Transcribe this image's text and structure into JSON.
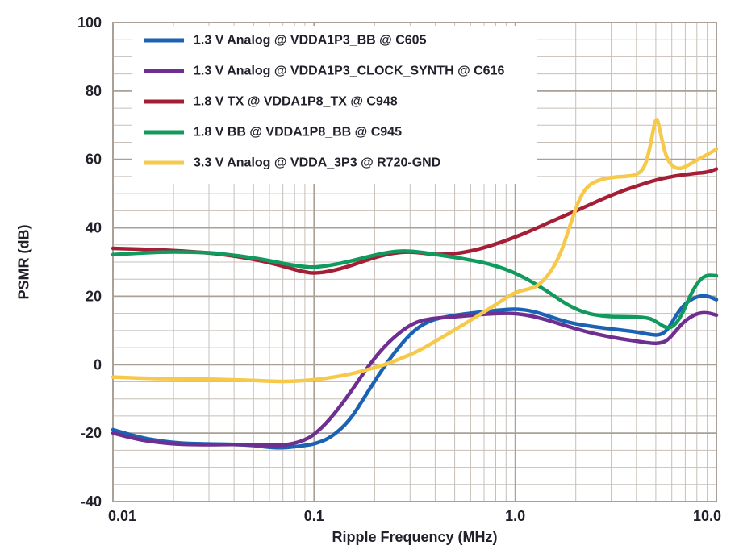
{
  "colors": {
    "text": "#21212b",
    "background": "#ffffff"
  },
  "chart_data": {
    "type": "line",
    "title": "",
    "xlabel": "Ripple Frequency (MHz)",
    "ylabel": "PSMR (dB)",
    "xscale": "log",
    "xlim": [
      0.01,
      10
    ],
    "ylim": [
      -40,
      100
    ],
    "x_ticks": [
      {
        "v": 0.01,
        "label": "0.01"
      },
      {
        "v": 0.1,
        "label": "0.1"
      },
      {
        "v": 1,
        "label": "1.0"
      },
      {
        "v": 10,
        "label": "10.0"
      }
    ],
    "y_ticks": [
      {
        "v": -40,
        "label": "-40"
      },
      {
        "v": -20,
        "label": "-20"
      },
      {
        "v": 0,
        "label": "0"
      },
      {
        "v": 20,
        "label": "20"
      },
      {
        "v": 40,
        "label": "40"
      },
      {
        "v": 60,
        "label": "60"
      },
      {
        "v": 80,
        "label": "80"
      },
      {
        "v": 100,
        "label": "100"
      }
    ],
    "y_minor_step": 5,
    "grid": {
      "on": true,
      "minor_color": "#c7bfb8",
      "major_color": "#a9a098"
    },
    "legend_position": "top-left",
    "series": [
      {
        "name": "1.3 V Analog @ VDDA1P3_BB @ C605",
        "color": "#1b62b5",
        "points": [
          [
            0.01,
            -19
          ],
          [
            0.013,
            -21
          ],
          [
            0.017,
            -22.3
          ],
          [
            0.022,
            -23
          ],
          [
            0.03,
            -23.2
          ],
          [
            0.04,
            -23.3
          ],
          [
            0.05,
            -23.6
          ],
          [
            0.06,
            -24.2
          ],
          [
            0.07,
            -24.3
          ],
          [
            0.08,
            -24
          ],
          [
            0.09,
            -23.6
          ],
          [
            0.1,
            -23.2
          ],
          [
            0.12,
            -21.5
          ],
          [
            0.15,
            -16.5
          ],
          [
            0.18,
            -9
          ],
          [
            0.22,
            -1
          ],
          [
            0.27,
            6
          ],
          [
            0.32,
            10.5
          ],
          [
            0.38,
            13
          ],
          [
            0.45,
            14
          ],
          [
            0.55,
            14.8
          ],
          [
            0.7,
            15.5
          ],
          [
            0.85,
            16
          ],
          [
            1.0,
            16.3
          ],
          [
            1.2,
            15.8
          ],
          [
            1.5,
            14
          ],
          [
            1.8,
            12.5
          ],
          [
            2.2,
            11.5
          ],
          [
            2.7,
            10.8
          ],
          [
            3.3,
            10.2
          ],
          [
            4,
            9.6
          ],
          [
            4.7,
            8.8
          ],
          [
            5.2,
            8.6
          ],
          [
            5.7,
            10
          ],
          [
            6.3,
            14.5
          ],
          [
            7,
            18
          ],
          [
            8,
            20
          ],
          [
            9,
            20.2
          ],
          [
            10,
            19
          ]
        ]
      },
      {
        "name": "1.3 V Analog @ VDDA1P3_CLOCK_SYNTH @ C616",
        "color": "#6f2f90",
        "points": [
          [
            0.01,
            -20
          ],
          [
            0.013,
            -21.8
          ],
          [
            0.017,
            -22.8
          ],
          [
            0.022,
            -23.3
          ],
          [
            0.03,
            -23.4
          ],
          [
            0.04,
            -23.3
          ],
          [
            0.05,
            -23.4
          ],
          [
            0.06,
            -23.6
          ],
          [
            0.07,
            -23.5
          ],
          [
            0.08,
            -23
          ],
          [
            0.09,
            -22
          ],
          [
            0.1,
            -20.5
          ],
          [
            0.12,
            -16
          ],
          [
            0.15,
            -8.5
          ],
          [
            0.18,
            -1.5
          ],
          [
            0.22,
            5
          ],
          [
            0.27,
            9.8
          ],
          [
            0.32,
            12.5
          ],
          [
            0.38,
            13.5
          ],
          [
            0.45,
            13.8
          ],
          [
            0.55,
            14.2
          ],
          [
            0.7,
            14.8
          ],
          [
            0.85,
            15
          ],
          [
            1.0,
            15
          ],
          [
            1.2,
            14.3
          ],
          [
            1.5,
            12.8
          ],
          [
            1.8,
            11.3
          ],
          [
            2.2,
            9.8
          ],
          [
            2.7,
            8.6
          ],
          [
            3.3,
            7.6
          ],
          [
            4,
            6.9
          ],
          [
            4.7,
            6.3
          ],
          [
            5.2,
            6.2
          ],
          [
            5.7,
            7
          ],
          [
            6.3,
            10
          ],
          [
            7,
            13
          ],
          [
            8,
            15
          ],
          [
            9,
            15.3
          ],
          [
            10,
            14.5
          ]
        ]
      },
      {
        "name": "1.8 V TX @ VDDA1P8_TX @ C948",
        "color": "#a41e35",
        "points": [
          [
            0.01,
            34
          ],
          [
            0.015,
            33.7
          ],
          [
            0.02,
            33.4
          ],
          [
            0.03,
            32.7
          ],
          [
            0.04,
            31.8
          ],
          [
            0.05,
            30.8
          ],
          [
            0.06,
            29.8
          ],
          [
            0.07,
            28.8
          ],
          [
            0.08,
            27.8
          ],
          [
            0.09,
            27.1
          ],
          [
            0.1,
            26.7
          ],
          [
            0.12,
            27.3
          ],
          [
            0.15,
            28.8
          ],
          [
            0.18,
            30.5
          ],
          [
            0.22,
            32
          ],
          [
            0.26,
            32.8
          ],
          [
            0.3,
            33
          ],
          [
            0.35,
            32.6
          ],
          [
            0.4,
            32.2
          ],
          [
            0.5,
            32.4
          ],
          [
            0.6,
            33.2
          ],
          [
            0.7,
            34.2
          ],
          [
            0.85,
            35.8
          ],
          [
            1.0,
            37.3
          ],
          [
            1.2,
            39.2
          ],
          [
            1.5,
            41.8
          ],
          [
            1.8,
            43.8
          ],
          [
            2.2,
            46
          ],
          [
            2.7,
            48.4
          ],
          [
            3.3,
            50.5
          ],
          [
            4,
            52.2
          ],
          [
            5,
            54
          ],
          [
            6,
            55
          ],
          [
            7,
            55.6
          ],
          [
            8,
            56
          ],
          [
            9,
            56.2
          ],
          [
            10,
            57.2
          ]
        ]
      },
      {
        "name": "1.8 V BB @ VDDA1P8_BB @ C945",
        "color": "#119a5e",
        "points": [
          [
            0.01,
            32.2
          ],
          [
            0.015,
            32.8
          ],
          [
            0.02,
            33
          ],
          [
            0.03,
            32.8
          ],
          [
            0.04,
            32
          ],
          [
            0.05,
            31.2
          ],
          [
            0.06,
            30.4
          ],
          [
            0.07,
            29.6
          ],
          [
            0.08,
            29
          ],
          [
            0.09,
            28.6
          ],
          [
            0.1,
            28.5
          ],
          [
            0.12,
            29
          ],
          [
            0.15,
            30.2
          ],
          [
            0.18,
            31.4
          ],
          [
            0.22,
            32.6
          ],
          [
            0.26,
            33.2
          ],
          [
            0.3,
            33.2
          ],
          [
            0.35,
            32.8
          ],
          [
            0.4,
            32.2
          ],
          [
            0.5,
            31.4
          ],
          [
            0.6,
            30.6
          ],
          [
            0.7,
            29.8
          ],
          [
            0.85,
            28.4
          ],
          [
            1.0,
            26.8
          ],
          [
            1.2,
            24.4
          ],
          [
            1.5,
            20.8
          ],
          [
            1.8,
            17.6
          ],
          [
            2.2,
            15.2
          ],
          [
            2.7,
            14.2
          ],
          [
            3.3,
            14
          ],
          [
            4,
            14
          ],
          [
            4.7,
            13.6
          ],
          [
            5.2,
            12
          ],
          [
            5.7,
            10.6
          ],
          [
            6.2,
            11.4
          ],
          [
            6.8,
            15
          ],
          [
            7.5,
            21
          ],
          [
            8.3,
            25
          ],
          [
            9,
            26.2
          ],
          [
            10,
            26
          ]
        ]
      },
      {
        "name": "3.3 V Analog @ VDDA_3P3 @ R720-GND",
        "color": "#f6c94b",
        "points": [
          [
            0.01,
            -3.6
          ],
          [
            0.015,
            -4
          ],
          [
            0.02,
            -4.1
          ],
          [
            0.03,
            -4.2
          ],
          [
            0.04,
            -4.4
          ],
          [
            0.05,
            -4.6
          ],
          [
            0.06,
            -4.8
          ],
          [
            0.07,
            -4.9
          ],
          [
            0.08,
            -4.8
          ],
          [
            0.1,
            -4.4
          ],
          [
            0.12,
            -3.8
          ],
          [
            0.15,
            -2.8
          ],
          [
            0.18,
            -1.6
          ],
          [
            0.22,
            -0.2
          ],
          [
            0.27,
            1.8
          ],
          [
            0.33,
            4
          ],
          [
            0.4,
            6.8
          ],
          [
            0.5,
            10.2
          ],
          [
            0.6,
            13
          ],
          [
            0.7,
            15.4
          ],
          [
            0.85,
            18.6
          ],
          [
            1.0,
            21.2
          ],
          [
            1.15,
            22
          ],
          [
            1.3,
            23
          ],
          [
            1.5,
            27
          ],
          [
            1.7,
            33
          ],
          [
            1.9,
            42
          ],
          [
            2.1,
            49
          ],
          [
            2.3,
            52.4
          ],
          [
            2.6,
            54
          ],
          [
            3,
            54.8
          ],
          [
            3.5,
            55
          ],
          [
            4,
            55.4
          ],
          [
            4.4,
            57.5
          ],
          [
            4.7,
            64
          ],
          [
            4.95,
            71.5
          ],
          [
            5.1,
            71.8
          ],
          [
            5.3,
            67
          ],
          [
            5.6,
            61
          ],
          [
            6,
            58
          ],
          [
            6.5,
            57.2
          ],
          [
            7,
            57.8
          ],
          [
            8,
            59.8
          ],
          [
            9,
            61.4
          ],
          [
            10,
            63
          ]
        ]
      }
    ]
  }
}
